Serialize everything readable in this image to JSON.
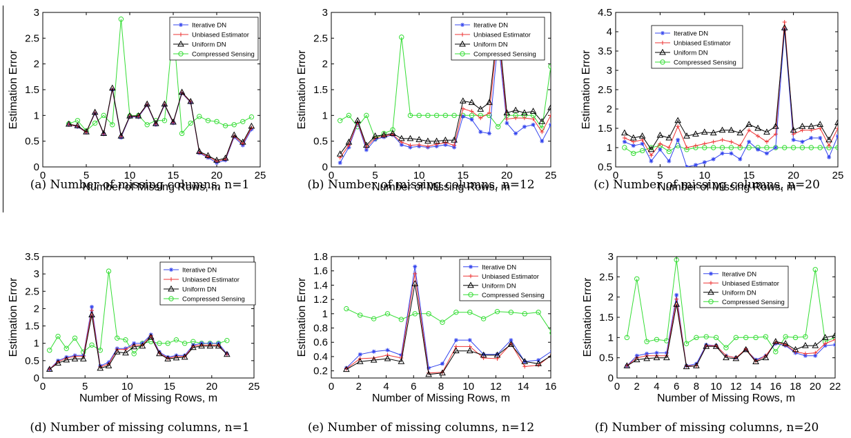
{
  "captions": {
    "a": "(a) Number of missing columns, n=1",
    "b": "(b) Number of missing columns, n=12",
    "c": "(c) Number of missing columns, n=20",
    "d": "(d) Number of missing columns, n=1",
    "e": "(e) Number of missing columns, n=12",
    "f": "(f) Number of missing columns, n=20"
  },
  "colors": {
    "iterative": "#3344ee",
    "unbiased": "#ee3333",
    "uniform": "#000000",
    "compressed": "#33dd33"
  },
  "chart_data": [
    {
      "type": "line",
      "panel": "a",
      "xlabel": "Number of Missing Rows, m",
      "ylabel": "Estimation Error",
      "xlim": [
        0,
        25
      ],
      "ylim": [
        0,
        3
      ],
      "xticks": [
        0,
        5,
        10,
        15,
        20,
        25
      ],
      "yticks": [
        0,
        0.5,
        1,
        1.5,
        2,
        2.5,
        3
      ],
      "legend_position": "top-right",
      "grid": false,
      "x": [
        3,
        4,
        5,
        6,
        7,
        8,
        9,
        10,
        11,
        12,
        13,
        14,
        15,
        16,
        17,
        18,
        19,
        20,
        21,
        22,
        23,
        24
      ],
      "series": [
        {
          "name": "Iterative DN",
          "marker": "star",
          "values": [
            0.82,
            0.78,
            0.67,
            1.04,
            0.64,
            1.5,
            0.57,
            0.97,
            0.97,
            1.2,
            0.82,
            1.2,
            0.85,
            1.43,
            1.25,
            0.27,
            0.18,
            0.08,
            0.13,
            0.58,
            0.42,
            0.73
          ]
        },
        {
          "name": "Unbiased Estimator",
          "marker": "plus",
          "values": [
            0.82,
            0.79,
            0.67,
            1.05,
            0.64,
            1.51,
            0.59,
            0.98,
            0.98,
            1.21,
            0.83,
            1.21,
            0.86,
            1.44,
            1.26,
            0.28,
            0.2,
            0.11,
            0.15,
            0.6,
            0.45,
            0.76
          ]
        },
        {
          "name": "Uniform DN",
          "marker": "triangle",
          "values": [
            0.83,
            0.8,
            0.68,
            1.06,
            0.65,
            1.53,
            0.6,
            0.99,
            0.99,
            1.22,
            0.84,
            1.22,
            0.87,
            1.45,
            1.27,
            0.3,
            0.22,
            0.13,
            0.17,
            0.62,
            0.48,
            0.79
          ]
        },
        {
          "name": "Compressed Sensing",
          "marker": "circle",
          "values": [
            0.84,
            0.9,
            0.7,
            0.85,
            1.0,
            0.82,
            2.87,
            0.99,
            1.0,
            0.82,
            0.9,
            0.9,
            2.72,
            0.65,
            0.85,
            0.98,
            0.9,
            0.88,
            0.8,
            0.82,
            0.88,
            0.97
          ]
        }
      ]
    },
    {
      "type": "line",
      "panel": "b",
      "xlabel": "Number of Missing Rows, m",
      "ylabel": "Estimation Error",
      "xlim": [
        0,
        25
      ],
      "ylim": [
        0,
        3
      ],
      "xticks": [
        0,
        5,
        10,
        15,
        20,
        25
      ],
      "yticks": [
        0,
        0.5,
        1,
        1.5,
        2,
        2.5,
        3
      ],
      "legend_position": "top-right",
      "grid": false,
      "x": [
        1,
        2,
        3,
        4,
        5,
        6,
        7,
        8,
        9,
        10,
        11,
        12,
        13,
        14,
        15,
        16,
        17,
        18,
        19,
        20,
        21,
        22,
        23,
        24,
        25
      ],
      "series": [
        {
          "name": "Iterative DN",
          "marker": "star",
          "values": [
            0.08,
            0.38,
            0.85,
            0.33,
            0.53,
            0.58,
            0.62,
            0.43,
            0.38,
            0.4,
            0.38,
            0.4,
            0.43,
            0.38,
            0.98,
            0.92,
            0.68,
            0.65,
            2.48,
            0.85,
            0.65,
            0.78,
            0.82,
            0.5,
            0.82
          ]
        },
        {
          "name": "Unbiased Estimator",
          "marker": "plus",
          "values": [
            0.18,
            0.42,
            0.87,
            0.38,
            0.56,
            0.6,
            0.63,
            0.48,
            0.42,
            0.43,
            0.4,
            0.44,
            0.47,
            0.42,
            1.13,
            1.08,
            0.95,
            1.05,
            2.68,
            0.93,
            0.95,
            0.95,
            0.93,
            0.68,
            1.0
          ]
        },
        {
          "name": "Uniform DN",
          "marker": "triangle",
          "values": [
            0.25,
            0.48,
            0.9,
            0.42,
            0.6,
            0.62,
            0.65,
            0.55,
            0.55,
            0.53,
            0.5,
            0.5,
            0.52,
            0.52,
            1.28,
            1.25,
            1.12,
            1.25,
            2.78,
            1.05,
            1.1,
            1.05,
            1.08,
            0.88,
            1.15
          ]
        },
        {
          "name": "Compressed Sensing",
          "marker": "circle",
          "values": [
            0.9,
            1.0,
            0.78,
            1.0,
            0.55,
            0.65,
            0.72,
            2.52,
            1.0,
            1.0,
            1.0,
            1.0,
            1.0,
            1.0,
            1.0,
            1.0,
            1.0,
            1.0,
            0.78,
            1.0,
            1.0,
            1.0,
            1.0,
            0.75,
            1.95
          ]
        }
      ]
    },
    {
      "type": "line",
      "panel": "c",
      "xlabel": "Number of Missing Rows, m",
      "ylabel": "Estimation Error",
      "xlim": [
        0,
        25
      ],
      "ylim": [
        0.5,
        4.5
      ],
      "xticks": [
        0,
        5,
        10,
        15,
        20,
        25
      ],
      "yticks": [
        0.5,
        1,
        1.5,
        2,
        2.5,
        3,
        3.5,
        4,
        4.5
      ],
      "legend_position": "top-left",
      "grid": false,
      "x": [
        1,
        2,
        3,
        4,
        5,
        6,
        7,
        8,
        9,
        10,
        11,
        12,
        13,
        14,
        15,
        16,
        17,
        18,
        19,
        20,
        21,
        22,
        23,
        24,
        25
      ],
      "series": [
        {
          "name": "Iterative DN",
          "marker": "star",
          "values": [
            1.15,
            1.05,
            1.1,
            0.65,
            0.95,
            0.65,
            1.2,
            0.5,
            0.55,
            0.62,
            0.7,
            0.85,
            0.85,
            0.7,
            1.15,
            0.95,
            0.85,
            1.0,
            4.05,
            1.2,
            1.15,
            1.25,
            1.25,
            0.75,
            1.3
          ]
        },
        {
          "name": "Unbiased Estimator",
          "marker": "plus",
          "values": [
            1.25,
            1.15,
            1.2,
            0.8,
            1.1,
            1.0,
            1.55,
            1.0,
            1.05,
            1.1,
            1.15,
            1.2,
            1.15,
            1.05,
            1.45,
            1.3,
            1.15,
            1.35,
            4.25,
            1.35,
            1.45,
            1.45,
            1.5,
            1.05,
            1.5
          ]
        },
        {
          "name": "Uniform DN",
          "marker": "triangle",
          "values": [
            1.38,
            1.25,
            1.3,
            0.95,
            1.32,
            1.25,
            1.7,
            1.3,
            1.35,
            1.4,
            1.38,
            1.45,
            1.45,
            1.38,
            1.6,
            1.5,
            1.4,
            1.55,
            4.1,
            1.45,
            1.55,
            1.55,
            1.6,
            1.2,
            1.65
          ]
        },
        {
          "name": "Compressed Sensing",
          "marker": "circle",
          "values": [
            1.0,
            0.85,
            0.92,
            1.0,
            1.05,
            0.9,
            1.05,
            0.95,
            1.0,
            1.0,
            1.0,
            1.0,
            1.0,
            1.0,
            1.0,
            1.0,
            1.0,
            1.0,
            1.0,
            1.0,
            1.0,
            1.0,
            1.0,
            1.0,
            1.0
          ]
        }
      ]
    },
    {
      "type": "line",
      "panel": "d",
      "xlabel": "Number of Missing Rows, m",
      "ylabel": "Estimation Error",
      "xlim": [
        0,
        25
      ],
      "ylim": [
        0,
        3.5
      ],
      "xticks": [
        0,
        5,
        10,
        15,
        20,
        25
      ],
      "yticks": [
        0,
        0.5,
        1,
        1.5,
        2,
        2.5,
        3,
        3.5
      ],
      "legend_position": "top-right",
      "grid": false,
      "x": [
        0.8,
        1.8,
        2.8,
        3.8,
        4.8,
        5.8,
        6.8,
        7.8,
        8.8,
        9.8,
        10.8,
        11.8,
        12.8,
        13.8,
        14.8,
        15.8,
        16.8,
        17.8,
        18.8,
        19.8,
        20.8,
        21.8
      ],
      "series": [
        {
          "name": "Iterative DN",
          "marker": "star",
          "values": [
            0.25,
            0.5,
            0.6,
            0.65,
            0.65,
            2.05,
            0.35,
            0.45,
            0.85,
            0.85,
            1.0,
            1.0,
            1.25,
            0.75,
            0.6,
            0.65,
            0.65,
            0.95,
            1.0,
            1.0,
            1.0,
            0.7
          ]
        },
        {
          "name": "Unbiased Estimator",
          "marker": "plus",
          "values": [
            0.25,
            0.47,
            0.57,
            0.62,
            0.62,
            1.95,
            0.32,
            0.4,
            0.82,
            0.82,
            0.95,
            0.95,
            1.22,
            0.72,
            0.57,
            0.62,
            0.62,
            0.92,
            0.95,
            0.95,
            0.95,
            0.68
          ]
        },
        {
          "name": "Uniform DN",
          "marker": "triangle",
          "values": [
            0.25,
            0.43,
            0.52,
            0.55,
            0.55,
            1.82,
            0.28,
            0.35,
            0.75,
            0.72,
            0.9,
            0.92,
            1.18,
            0.7,
            0.55,
            0.58,
            0.6,
            0.88,
            0.92,
            0.92,
            0.92,
            0.68
          ]
        },
        {
          "name": "Compressed Sensing",
          "marker": "circle",
          "values": [
            0.8,
            1.2,
            0.85,
            1.15,
            0.75,
            0.95,
            0.8,
            3.08,
            1.15,
            1.1,
            0.7,
            1.0,
            1.05,
            1.0,
            1.0,
            1.1,
            1.0,
            1.05,
            1.0,
            1.0,
            1.0,
            1.08
          ]
        }
      ]
    },
    {
      "type": "line",
      "panel": "e",
      "xlabel": "Number of Missing Rows, m",
      "ylabel": "Estimation Error",
      "xlim": [
        0,
        16
      ],
      "ylim": [
        0.1,
        1.8
      ],
      "xticks": [
        0,
        2,
        4,
        6,
        8,
        10,
        12,
        14,
        16
      ],
      "yticks": [
        0.2,
        0.4,
        0.6,
        0.8,
        1,
        1.2,
        1.4,
        1.6,
        1.8
      ],
      "legend_position": "top-right",
      "grid": false,
      "x": [
        1.1,
        2.1,
        3.1,
        4.1,
        5.1,
        6.1,
        7.1,
        8.1,
        9.1,
        10.1,
        11.1,
        12.1,
        13.1,
        14.1,
        15.1,
        16.1
      ],
      "series": [
        {
          "name": "Iterative DN",
          "marker": "star",
          "values": [
            0.24,
            0.43,
            0.47,
            0.49,
            0.42,
            1.66,
            0.24,
            0.3,
            0.63,
            0.63,
            0.43,
            0.43,
            0.63,
            0.33,
            0.35,
            0.48
          ]
        },
        {
          "name": "Unbiased Estimator",
          "marker": "plus",
          "values": [
            0.23,
            0.37,
            0.38,
            0.42,
            0.38,
            1.56,
            0.17,
            0.18,
            0.54,
            0.54,
            0.38,
            0.37,
            0.58,
            0.26,
            0.28,
            0.43
          ]
        },
        {
          "name": "Uniform DN",
          "marker": "triangle",
          "values": [
            0.22,
            0.33,
            0.35,
            0.37,
            0.33,
            1.42,
            0.15,
            0.17,
            0.48,
            0.48,
            0.42,
            0.42,
            0.57,
            0.33,
            0.3,
            0.42
          ]
        },
        {
          "name": "Compressed Sensing",
          "marker": "circle",
          "values": [
            1.07,
            0.98,
            0.93,
            1.0,
            0.92,
            1.0,
            1.0,
            0.88,
            1.02,
            1.02,
            0.93,
            1.03,
            1.02,
            1.0,
            1.02,
            0.73
          ]
        }
      ]
    },
    {
      "type": "line",
      "panel": "f",
      "xlabel": "Number of Missing Rows, m",
      "ylabel": "Estimation Error",
      "xlim": [
        0,
        22
      ],
      "ylim": [
        0,
        3
      ],
      "xticks": [
        0,
        2,
        4,
        6,
        8,
        10,
        12,
        14,
        16,
        18,
        20,
        22
      ],
      "yticks": [
        0,
        0.5,
        1,
        1.5,
        2,
        2.5,
        3
      ],
      "legend_position": "top-right",
      "grid": false,
      "x": [
        1,
        2,
        3,
        4,
        5,
        6,
        7,
        8,
        9,
        10,
        11,
        12,
        13,
        14,
        15,
        16,
        17,
        18,
        19,
        20,
        21,
        22
      ],
      "series": [
        {
          "name": "Iterative DN",
          "marker": "star",
          "values": [
            0.3,
            0.55,
            0.6,
            0.62,
            0.62,
            2.05,
            0.3,
            0.35,
            0.82,
            0.8,
            0.55,
            0.5,
            0.7,
            0.45,
            0.55,
            0.85,
            0.8,
            0.62,
            0.55,
            0.55,
            0.8,
            0.82
          ]
        },
        {
          "name": "Unbiased Estimator",
          "marker": "plus",
          "values": [
            0.3,
            0.5,
            0.55,
            0.55,
            0.55,
            1.95,
            0.3,
            0.3,
            0.8,
            0.8,
            0.55,
            0.5,
            0.72,
            0.42,
            0.55,
            0.88,
            0.82,
            0.65,
            0.6,
            0.62,
            0.85,
            0.95
          ]
        },
        {
          "name": "Uniform DN",
          "marker": "triangle",
          "values": [
            0.3,
            0.45,
            0.48,
            0.5,
            0.5,
            1.82,
            0.28,
            0.3,
            0.78,
            0.78,
            0.5,
            0.48,
            0.7,
            0.4,
            0.5,
            0.9,
            0.85,
            0.7,
            0.8,
            0.8,
            1.0,
            1.05
          ]
        },
        {
          "name": "Compressed Sensing",
          "marker": "circle",
          "values": [
            1.0,
            2.45,
            0.9,
            0.95,
            0.92,
            2.92,
            0.85,
            1.0,
            1.02,
            1.0,
            0.75,
            1.0,
            1.0,
            1.0,
            1.02,
            0.65,
            1.02,
            1.0,
            1.02,
            2.68,
            0.9,
            1.0
          ]
        }
      ]
    }
  ]
}
